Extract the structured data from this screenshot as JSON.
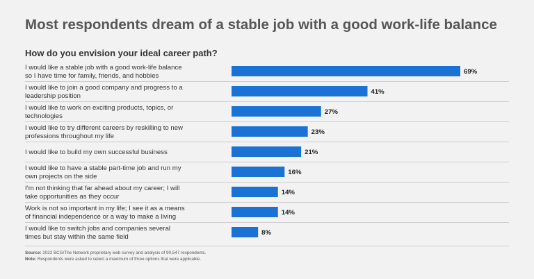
{
  "title": "Most respondents dream of a stable job with a good work-life balance",
  "question": "How do you envision your ideal career path?",
  "colors": {
    "bar": "#1a73d4",
    "divider": "#cccccc",
    "background": "#f2f2f2"
  },
  "chart_data": {
    "type": "bar",
    "orientation": "horizontal",
    "title": "How do you envision your ideal career path?",
    "categories": [
      [
        "I would like a stable job with a good work-life balance",
        "so I have time for family, friends, and hobbies"
      ],
      [
        "I would like to join a good company and progress to a",
        "leadership position"
      ],
      [
        "I would like to work on exciting products, topics, or",
        "technologies"
      ],
      [
        "I would like to try different careers by reskilling to new",
        "professions throughout my life"
      ],
      [
        "I would like to build my own successful business"
      ],
      [
        "I would like to have a stable part-time job and run my",
        "own projects on the side"
      ],
      [
        "I’m not thinking that far ahead about my career; I will",
        "take opportunities as they occur"
      ],
      [
        "Work is not so important in my life; I see it as a means",
        "of financial independence or a way to make a living"
      ],
      [
        "I would like to switch jobs and companies several",
        "times but stay within the same field"
      ]
    ],
    "values": [
      69,
      41,
      27,
      23,
      21,
      16,
      14,
      14,
      8
    ],
    "value_labels": [
      "69%",
      "41%",
      "27%",
      "23%",
      "21%",
      "16%",
      "14%",
      "14%",
      "8%"
    ],
    "unit": "%",
    "xlim": [
      0,
      100
    ],
    "grid": false,
    "legend": "none"
  },
  "footnotes": {
    "source_label": "Source:",
    "source_text": " 2022 BCG/The Network proprietary web survey and analysis of 90,547 respondents.",
    "note_label": "Note:",
    "note_text": " Respondents were asked to select a maximum of three options that were applicable."
  }
}
